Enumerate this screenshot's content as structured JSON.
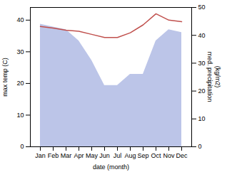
{
  "chart_data": {
    "type": "line",
    "xlabel": "date (month)",
    "ylabel": "max temp (C)",
    "y2label": "med. precipitation\n(kg/m2)",
    "categories": [
      "Jan",
      "Feb",
      "Mar",
      "Apr",
      "May",
      "Jun",
      "Jul",
      "Aug",
      "Sep",
      "Oct",
      "Nov",
      "Dec"
    ],
    "series": [
      {
        "type": "area",
        "axis": "y2",
        "color": "#bcc5e8",
        "values": [
          44,
          43,
          42,
          38,
          31,
          22,
          22,
          26,
          26,
          38,
          42,
          41
        ]
      },
      {
        "type": "line",
        "color": "#c0504d",
        "values": [
          38,
          37.5,
          36.8,
          36.5,
          35.5,
          34.5,
          34.5,
          36,
          38.5,
          42,
          40,
          39.5
        ]
      }
    ],
    "ylim": [
      0,
      44
    ],
    "yticks": [
      0,
      10,
      20,
      30,
      40
    ],
    "y2lim": [
      0,
      50
    ],
    "y2ticks": [
      0,
      10,
      20,
      30,
      40,
      50
    ]
  }
}
